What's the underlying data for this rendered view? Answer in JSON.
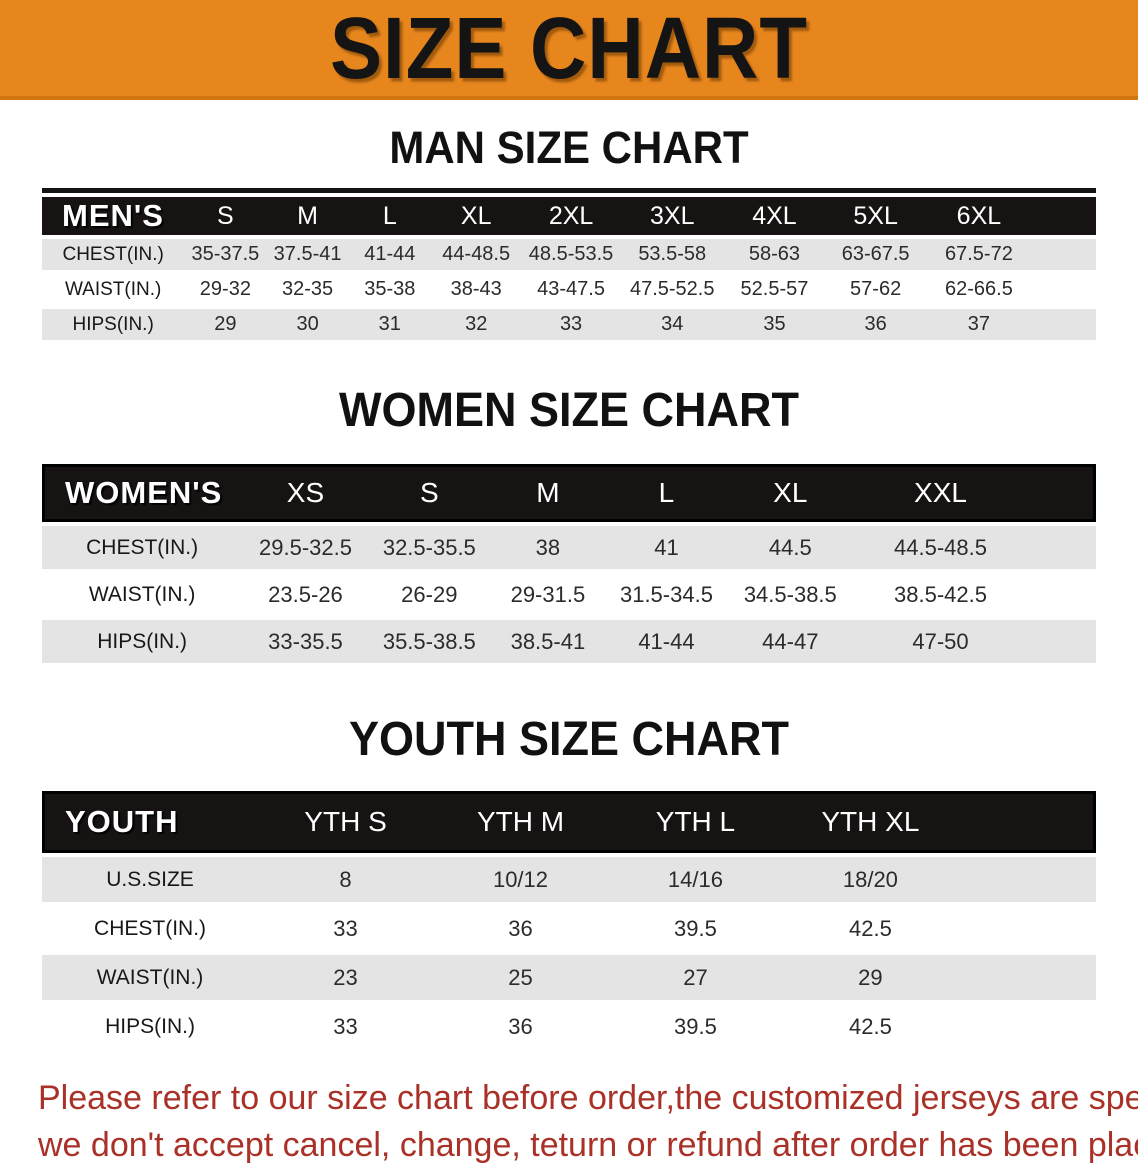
{
  "banner": {
    "title": "SIZE CHART",
    "bg_color": "#E8861E",
    "text_color": "#141414"
  },
  "sections": [
    {
      "heading": "MAN SIZE CHART",
      "table": {
        "header_label": "MEN'S",
        "columns": [
          "S",
          "M",
          "L",
          "XL",
          "2XL",
          "3XL",
          "4XL",
          "5XL",
          "6XL"
        ],
        "rows": [
          {
            "label": "CHEST(IN.)",
            "values": [
              "35-37.5",
              "37.5-41",
              "41-44",
              "44-48.5",
              "48.5-53.5",
              "53.5-58",
              "58-63",
              "63-67.5",
              "67.5-72"
            ]
          },
          {
            "label": "WAIST(IN.)",
            "values": [
              "29-32",
              "32-35",
              "35-38",
              "38-43",
              "43-47.5",
              "47.5-52.5",
              "52.5-57",
              "57-62",
              "62-66.5"
            ]
          },
          {
            "label": "HIPS(IN.)",
            "values": [
              "29",
              "30",
              "31",
              "32",
              "33",
              "34",
              "35",
              "36",
              "37"
            ]
          }
        ]
      }
    },
    {
      "heading": "WOMEN SIZE CHART",
      "table": {
        "header_label": "WOMEN'S",
        "columns": [
          "XS",
          "S",
          "M",
          "L",
          "XL",
          "XXL"
        ],
        "rows": [
          {
            "label": "CHEST(IN.)",
            "values": [
              "29.5-32.5",
              "32.5-35.5",
              "38",
              "41",
              "44.5",
              "44.5-48.5"
            ]
          },
          {
            "label": "WAIST(IN.)",
            "values": [
              "23.5-26",
              "26-29",
              "29-31.5",
              "31.5-34.5",
              "34.5-38.5",
              "38.5-42.5"
            ]
          },
          {
            "label": "HIPS(IN.)",
            "values": [
              "33-35.5",
              "35.5-38.5",
              "38.5-41",
              "41-44",
              "44-47",
              "47-50"
            ]
          }
        ]
      }
    },
    {
      "heading": "YOUTH SIZE CHART",
      "table": {
        "header_label": "YOUTH",
        "columns": [
          "YTH S",
          "YTH M",
          "YTH L",
          "YTH XL"
        ],
        "rows": [
          {
            "label": "U.S.SIZE",
            "values": [
              "8",
              "10/12",
              "14/16",
              "18/20"
            ]
          },
          {
            "label": "CHEST(IN.)",
            "values": [
              "33",
              "36",
              "39.5",
              "42.5"
            ]
          },
          {
            "label": "WAIST(IN.)",
            "values": [
              "23",
              "25",
              "27",
              "29"
            ]
          },
          {
            "label": "HIPS(IN.)",
            "values": [
              "33",
              "36",
              "39.5",
              "42.5"
            ]
          }
        ]
      }
    }
  ],
  "footer_note": {
    "line1": "Please refer to our size chart before order,the customized jerseys are special products,",
    "line2": "we don't accept cancel, change, teturn or refund after order has been placed!",
    "color": "#A93128"
  }
}
